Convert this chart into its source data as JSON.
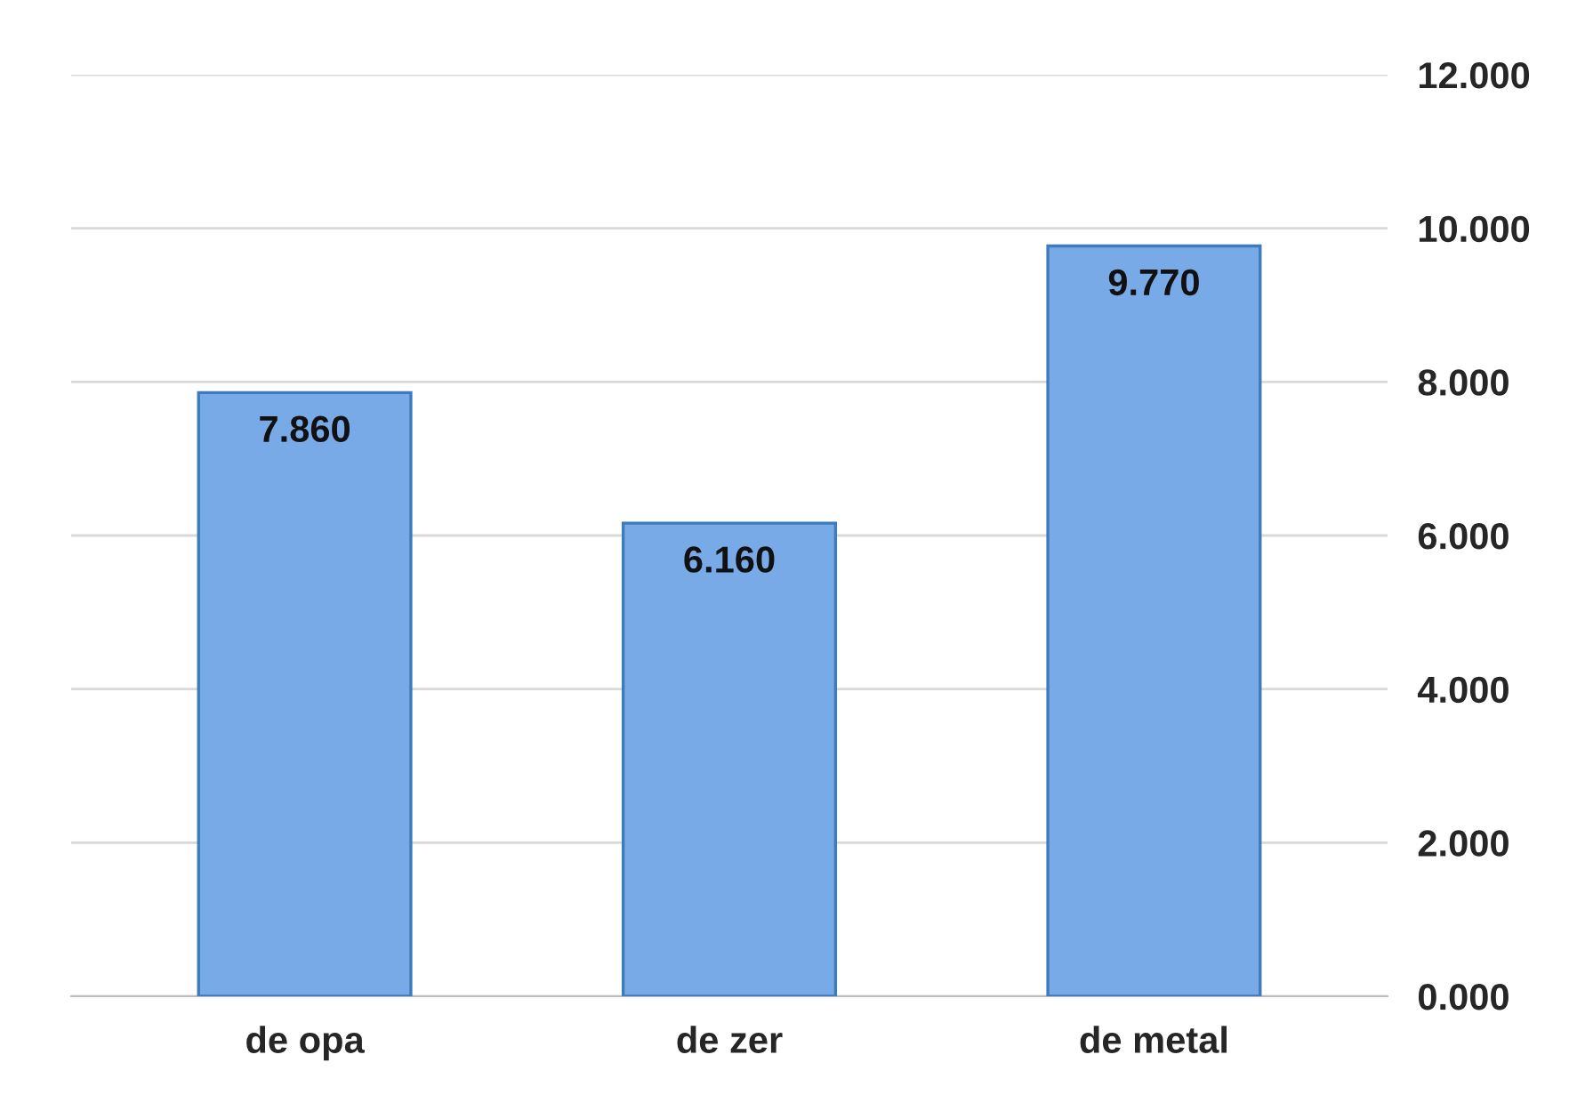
{
  "chart_data": {
    "type": "bar",
    "categories": [
      "de opa",
      "de zer",
      "de metal"
    ],
    "values": [
      7.86,
      6.16,
      9.77
    ],
    "value_labels": [
      "7.860",
      "6.160",
      "9.770"
    ],
    "color": "#78aae8",
    "ylim": [
      0,
      12
    ],
    "yticks": [
      {
        "value": 0,
        "label": "0.000"
      },
      {
        "value": 2,
        "label": "2.000"
      },
      {
        "value": 4,
        "label": "4.000"
      },
      {
        "value": 6,
        "label": "6.000"
      },
      {
        "value": 8,
        "label": "8.000"
      },
      {
        "value": 10,
        "label": "10.000"
      },
      {
        "value": 12,
        "label": "12.000"
      }
    ],
    "grid": "y"
  }
}
